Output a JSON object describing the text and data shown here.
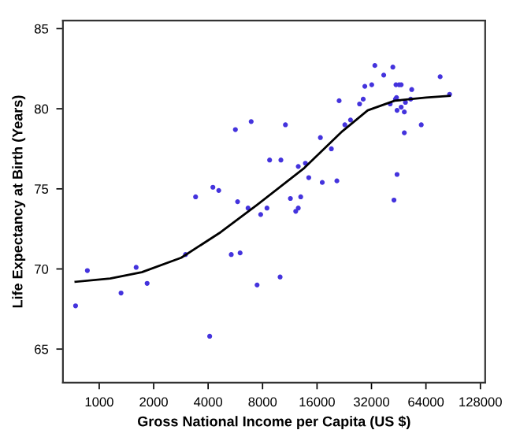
{
  "chart_data": {
    "type": "scatter",
    "xlabel": "Gross National Income per Capita (US $)",
    "ylabel": "Life Expectancy at Birth (Years)",
    "log": "x",
    "xlim": [
      630,
      136000
    ],
    "xticks": [
      1000,
      2000,
      4000,
      8000,
      16000,
      32000,
      64000,
      128000
    ],
    "ylim": [
      62.9,
      85.5
    ],
    "yticks": [
      65,
      70,
      75,
      80,
      85
    ],
    "grid": false,
    "legend": false,
    "marker": "circle",
    "series": [
      {
        "color": "#4433dd",
        "x": [
          740,
          860,
          1320,
          1600,
          1840,
          3000,
          3410,
          4250,
          4580,
          4080,
          5820,
          6650,
          5370,
          6010,
          7460,
          7810,
          8460,
          10000,
          11400,
          12200,
          13000,
          12600,
          14400,
          17100,
          20600,
          42600,
          44300,
          33400,
          42000,
          37400,
          29400,
          32100,
          43700,
          45500,
          46700,
          53400,
          44000,
          43400,
          52700,
          76700,
          86500,
          21200,
          28800,
          27500,
          40600,
          49300,
          46700,
          44300,
          48600,
          24500,
          22800,
          60300,
          48600,
          6920,
          10700,
          16700,
          19200,
          8750,
          10100,
          12600,
          13800,
          5660
        ],
        "values": [
          67.7,
          69.9,
          68.5,
          70.1,
          69.1,
          70.9,
          74.5,
          75.1,
          74.9,
          65.8,
          74.2,
          73.8,
          70.9,
          71.0,
          69.0,
          73.4,
          73.8,
          69.5,
          74.4,
          73.6,
          74.5,
          73.8,
          75.7,
          75.4,
          75.5,
          74.3,
          75.9,
          82.7,
          82.6,
          82.1,
          81.4,
          81.5,
          81.5,
          81.5,
          81.5,
          81.2,
          80.7,
          80.6,
          80.6,
          82.0,
          80.9,
          80.5,
          80.6,
          80.3,
          80.3,
          80.4,
          80.1,
          79.9,
          79.8,
          79.3,
          79.0,
          79.0,
          78.5,
          79.2,
          79.0,
          78.2,
          77.5,
          76.8,
          76.8,
          76.4,
          76.6,
          78.7
        ]
      },
      {
        "type": "line",
        "color": "#000000",
        "marker": "none",
        "line_style": "solid",
        "x": [
          740,
          1150,
          1720,
          2840,
          4700,
          7460,
          13600,
          22100,
          30500,
          43000,
          64000,
          86500
        ],
        "values": [
          69.2,
          69.4,
          69.8,
          70.7,
          72.3,
          74.0,
          76.3,
          78.6,
          79.9,
          80.5,
          80.7,
          80.8
        ]
      }
    ]
  }
}
